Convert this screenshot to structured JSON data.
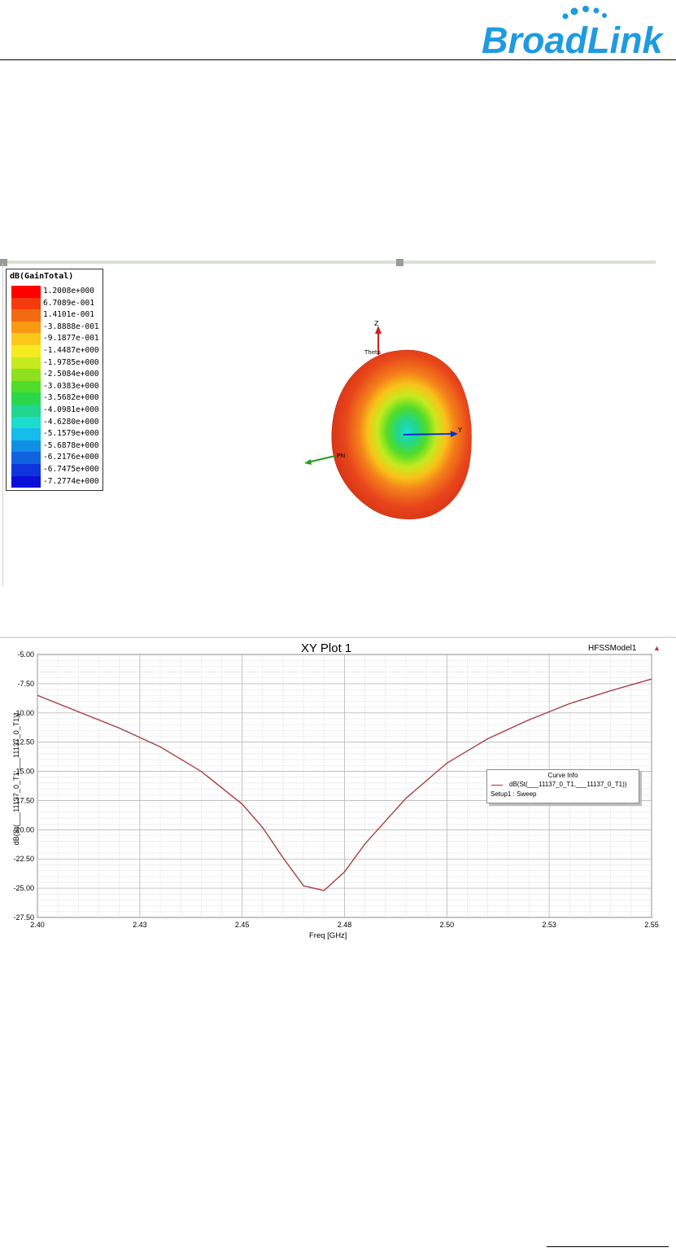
{
  "brand": {
    "name": "BroadLink"
  },
  "radiation_pattern": {
    "legend_title": "dB(GainTotal)",
    "legend_values": [
      "1.2008e+000",
      "6.7089e-001",
      "1.4101e-001",
      "-3.8888e-001",
      "-9.1877e-001",
      "-1.4487e+000",
      "-1.9785e+000",
      "-2.5084e+000",
      "-3.0383e+000",
      "-3.5682e+000",
      "-4.0981e+000",
      "-4.6280e+000",
      "-5.1579e+000",
      "-5.6878e+000",
      "-6.2176e+000",
      "-6.7475e+000",
      "-7.2774e+000"
    ],
    "legend_colors": [
      "#ff0000",
      "#f53a0e",
      "#f36a12",
      "#f99a12",
      "#fbc81a",
      "#f4ec1e",
      "#c6ea1e",
      "#8ee021",
      "#51dc28",
      "#2ad84a",
      "#20d690",
      "#1fdcd0",
      "#15bcec",
      "#108ee6",
      "#1162df",
      "#0f36dc",
      "#0a10d8"
    ],
    "axis_labels": {
      "z": "Z",
      "theta": "Theta",
      "y": "Y",
      "phi": "Phi"
    }
  },
  "xy_plot": {
    "title": "XY Plot 1",
    "model": "HFSSModel1",
    "ylabel": "dB(St(___11137_0_T1,___11137_0_T1))",
    "xlabel": "Freq [GHz]",
    "curve_info": {
      "title": "Curve Info",
      "name": "dB(St(___11137_0_T1,___11137_0_T1))",
      "setup": "Setup1 : Sweep",
      "color": "#d02020"
    }
  },
  "chart_data": {
    "type": "line",
    "title": "XY Plot 1",
    "xlabel": "Freq [GHz]",
    "ylabel": "dB(St(___11137_0_T1,___11137_0_T1))",
    "xlim": [
      2.4,
      2.55
    ],
    "ylim": [
      -27.5,
      -5.0
    ],
    "x_ticks": [
      {
        "value": 2.4,
        "label": "2.40"
      },
      {
        "value": 2.425,
        "label": "2.43"
      },
      {
        "value": 2.45,
        "label": "2.45"
      },
      {
        "value": 2.475,
        "label": "2.48"
      },
      {
        "value": 2.5,
        "label": "2.50"
      },
      {
        "value": 2.525,
        "label": "2.53"
      },
      {
        "value": 2.55,
        "label": "2.55"
      }
    ],
    "y_ticks": [
      {
        "value": -5.0,
        "label": "-5.00"
      },
      {
        "value": -7.5,
        "label": "-7.50"
      },
      {
        "value": -10.0,
        "label": "-10.00"
      },
      {
        "value": -12.5,
        "label": "-12.50"
      },
      {
        "value": -15.0,
        "label": "-15.00"
      },
      {
        "value": -17.5,
        "label": "-17.50"
      },
      {
        "value": -20.0,
        "label": "-20.00"
      },
      {
        "value": -22.5,
        "label": "-22.50"
      },
      {
        "value": -25.0,
        "label": "-25.00"
      },
      {
        "value": -27.5,
        "label": "-27.50"
      }
    ],
    "grid": true,
    "legend_position": "right",
    "series": [
      {
        "name": "dB(St(___11137_0_T1,___11137_0_T1))",
        "color": "#d02020",
        "x": [
          2.4,
          2.41,
          2.42,
          2.43,
          2.44,
          2.45,
          2.455,
          2.46,
          2.465,
          2.47,
          2.475,
          2.48,
          2.49,
          2.5,
          2.51,
          2.52,
          2.53,
          2.54,
          2.55
        ],
        "y": [
          -8.5,
          -9.9,
          -11.3,
          -12.9,
          -15.0,
          -17.8,
          -19.8,
          -22.4,
          -24.8,
          -25.2,
          -23.6,
          -21.2,
          -17.3,
          -14.3,
          -12.2,
          -10.6,
          -9.2,
          -8.1,
          -7.1
        ]
      }
    ]
  }
}
